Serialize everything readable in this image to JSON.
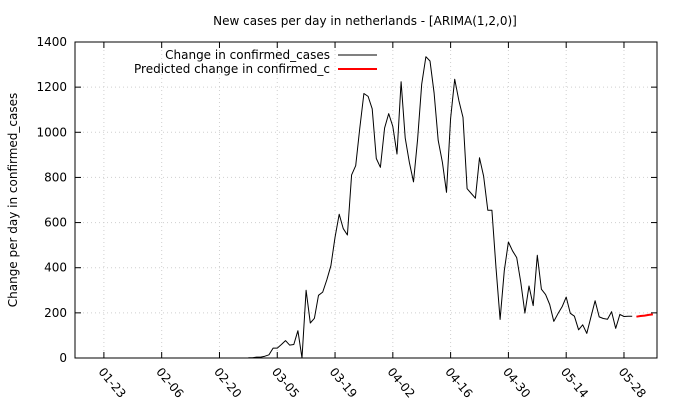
{
  "chart_data": {
    "type": "line",
    "title": "New cases per day in netherlands -  [ARIMA(1,2,0)]",
    "xlabel": "",
    "ylabel": "Change per day in confirmed_cases",
    "x_start": "2020-01-16",
    "x_end": "2020-06-05",
    "xticks": [
      "01-23",
      "02-06",
      "02-20",
      "03-05",
      "03-19",
      "04-02",
      "04-16",
      "04-30",
      "05-14",
      "05-28"
    ],
    "ylim": [
      0,
      1400
    ],
    "yticks": [
      0,
      200,
      400,
      600,
      800,
      1000,
      1200,
      1400
    ],
    "grid": true,
    "legend_position": "top-left",
    "series": [
      {
        "name": "Change in confirmed_cases",
        "color": "#000000",
        "x": [
          "2020-02-27",
          "2020-02-28",
          "2020-02-29",
          "2020-03-01",
          "2020-03-02",
          "2020-03-03",
          "2020-03-04",
          "2020-03-05",
          "2020-03-06",
          "2020-03-07",
          "2020-03-08",
          "2020-03-09",
          "2020-03-10",
          "2020-03-11",
          "2020-03-12",
          "2020-03-13",
          "2020-03-14",
          "2020-03-15",
          "2020-03-16",
          "2020-03-17",
          "2020-03-18",
          "2020-03-19",
          "2020-03-20",
          "2020-03-21",
          "2020-03-22",
          "2020-03-23",
          "2020-03-24",
          "2020-03-25",
          "2020-03-26",
          "2020-03-27",
          "2020-03-28",
          "2020-03-29",
          "2020-03-30",
          "2020-03-31",
          "2020-04-01",
          "2020-04-02",
          "2020-04-03",
          "2020-04-04",
          "2020-04-05",
          "2020-04-06",
          "2020-04-07",
          "2020-04-08",
          "2020-04-09",
          "2020-04-10",
          "2020-04-11",
          "2020-04-12",
          "2020-04-13",
          "2020-04-14",
          "2020-04-15",
          "2020-04-16",
          "2020-04-17",
          "2020-04-18",
          "2020-04-19",
          "2020-04-20",
          "2020-04-21",
          "2020-04-22",
          "2020-04-23",
          "2020-04-24",
          "2020-04-25",
          "2020-04-26",
          "2020-04-27",
          "2020-04-28",
          "2020-04-29",
          "2020-04-30",
          "2020-05-01",
          "2020-05-02",
          "2020-05-03",
          "2020-05-04",
          "2020-05-05",
          "2020-05-06",
          "2020-05-07",
          "2020-05-08",
          "2020-05-09",
          "2020-05-10",
          "2020-05-11",
          "2020-05-12",
          "2020-05-13",
          "2020-05-14",
          "2020-05-15",
          "2020-05-16",
          "2020-05-17",
          "2020-05-18",
          "2020-05-19",
          "2020-05-20",
          "2020-05-21",
          "2020-05-22",
          "2020-05-23",
          "2020-05-24",
          "2020-05-25",
          "2020-05-26",
          "2020-05-27",
          "2020-05-28",
          "2020-05-29",
          "2020-05-30"
        ],
        "values": [
          1,
          1,
          4,
          4,
          8,
          14,
          44,
          44,
          60,
          77,
          57,
          60,
          121,
          0,
          300,
          155,
          176,
          278,
          292,
          346,
          409,
          534,
          637,
          573,
          545,
          811,
          852,
          1019,
          1172,
          1159,
          1104,
          884,
          845,
          1019,
          1083,
          1026,
          904,
          1224,
          975,
          868,
          780,
          969,
          1213,
          1335,
          1316,
          1174,
          964,
          867,
          734,
          1061,
          1235,
          1140,
          1066,
          750,
          729,
          708,
          887,
          806,
          655,
          655,
          400,
          171,
          387,
          514,
          475,
          445,
          335,
          199,
          319,
          232,
          455,
          305,
          281,
          237,
          162,
          196,
          227,
          270,
          198,
          185,
          125,
          147,
          109,
          183,
          254,
          182,
          175,
          172,
          205,
          131,
          193,
          184,
          185,
          185
        ]
      },
      {
        "name": "Predicted change in confirmed_c",
        "color": "#ff0000",
        "x": [
          "2020-05-31",
          "2020-06-01",
          "2020-06-02",
          "2020-06-03",
          "2020-06-04"
        ],
        "values": [
          183,
          186,
          188,
          191,
          193
        ]
      }
    ]
  }
}
